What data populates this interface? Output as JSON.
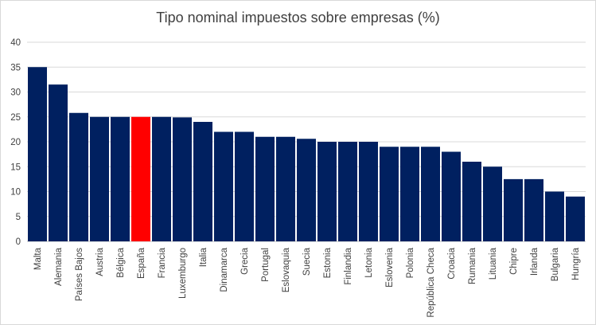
{
  "chart_data": {
    "type": "bar",
    "title": "Tipo nominal impuestos sobre empresas (%)",
    "xlabel": "",
    "ylabel": "",
    "ylim": [
      0,
      40
    ],
    "yticks": [
      0,
      5,
      10,
      15,
      20,
      25,
      30,
      35,
      40
    ],
    "grid": true,
    "categories": [
      "Malta",
      "Alemania",
      "Países Bajos",
      "Austria",
      "Bélgica",
      "España",
      "Francia",
      "Luxemburgo",
      "Italia",
      "Dinamarca",
      "Grecia",
      "Portugal",
      "Eslovaquia",
      "Suecia",
      "Estonia",
      "Finlandia",
      "Letonia",
      "Eslovenia",
      "Polonia",
      "República Checa",
      "Croacia",
      "Rumania",
      "Lituania",
      "Chipre",
      "Irlanda",
      "Bulgaria",
      "Hungría"
    ],
    "values": [
      35,
      31.5,
      25.8,
      25,
      25,
      25,
      25,
      24.9,
      24,
      22,
      22,
      21,
      21,
      20.6,
      20,
      20,
      20,
      19,
      19,
      19,
      18,
      16,
      15,
      12.5,
      12.5,
      10,
      9
    ],
    "highlight": "España",
    "colors": {
      "bar": "#002060",
      "highlight": "#ff0000",
      "grid": "#d9d9d9",
      "text": "#404040"
    }
  }
}
